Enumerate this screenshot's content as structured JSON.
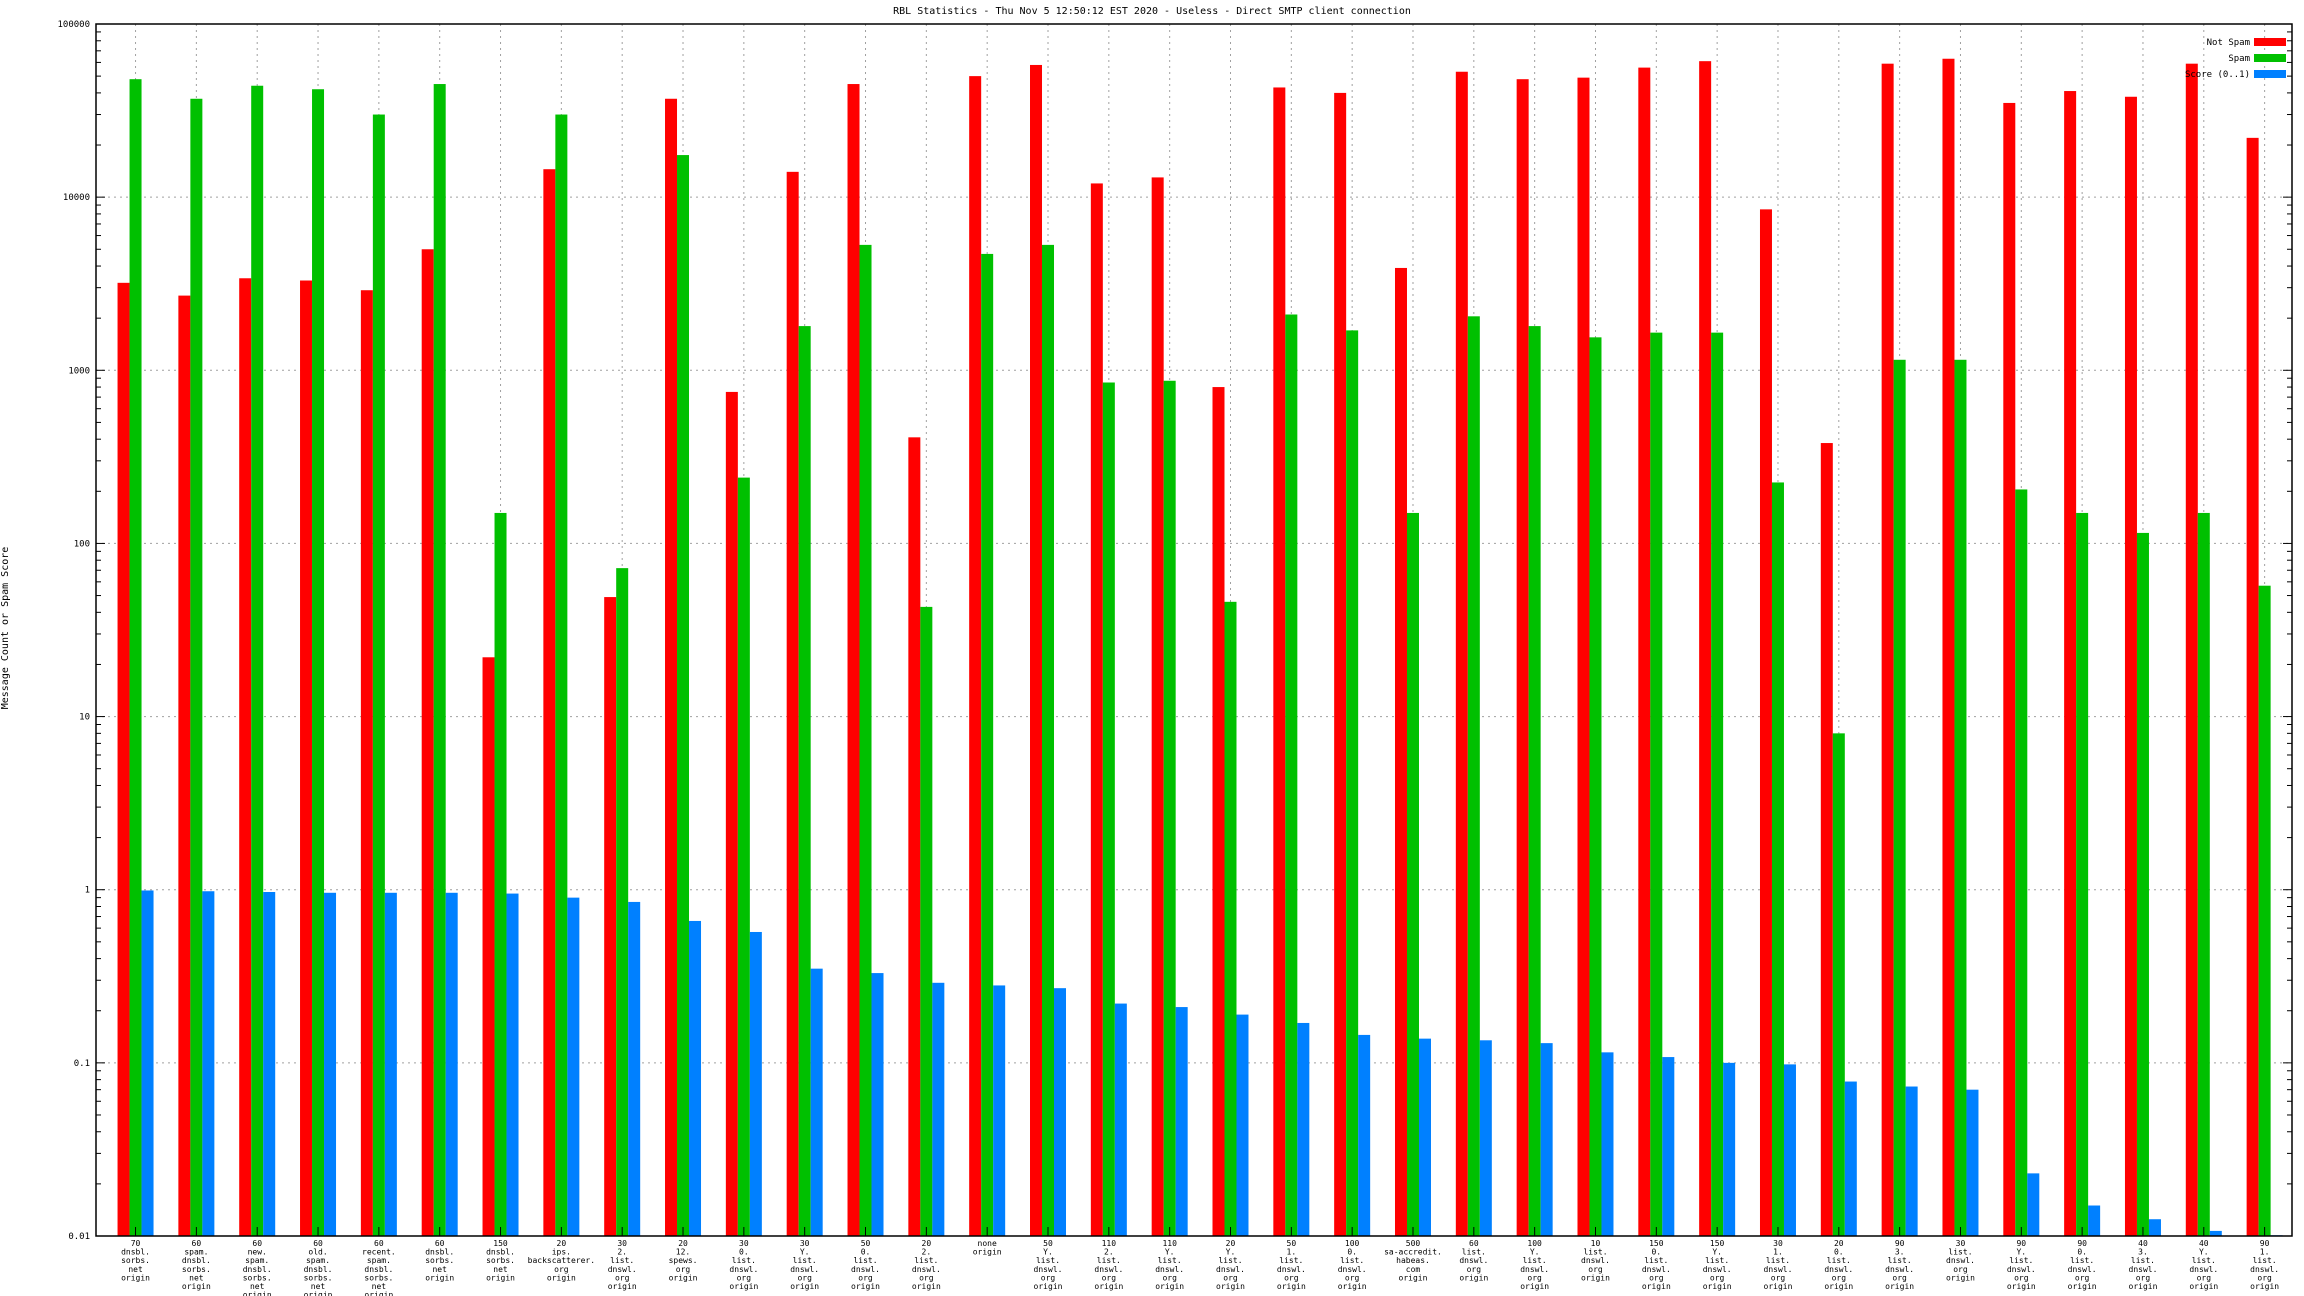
{
  "chart_data": {
    "type": "bar",
    "title": "RBL Statistics - Thu Nov  5 12:50:12 EST 2020 - Useless - Direct SMTP client connection",
    "ylabel": "Message Count or Spam Score",
    "xlabel": "",
    "yscale": "log",
    "ylim": [
      0.01,
      100000
    ],
    "y_ticks": [
      "0.01",
      "0.1",
      "1",
      "10",
      "100",
      "1000",
      "10000",
      "100000"
    ],
    "grid": true,
    "legend_position": "top-right",
    "categories": [
      [
        "70",
        "dnsbl.",
        "sorbs.",
        "net",
        "origin"
      ],
      [
        "60",
        "spam.",
        "dnsbl.",
        "sorbs.",
        "net",
        "origin"
      ],
      [
        "60",
        "new.",
        "spam.",
        "dnsbl.",
        "sorbs.",
        "net",
        "origin"
      ],
      [
        "60",
        "old.",
        "spam.",
        "dnsbl.",
        "sorbs.",
        "net",
        "origin"
      ],
      [
        "60",
        "recent.",
        "spam.",
        "dnsbl.",
        "sorbs.",
        "net",
        "origin"
      ],
      [
        "60",
        "dnsbl.",
        "sorbs.",
        "net",
        "origin"
      ],
      [
        "150",
        "dnsbl.",
        "sorbs.",
        "net",
        "origin"
      ],
      [
        "20",
        "ips.",
        "backscatterer.",
        "org",
        "origin"
      ],
      [
        "30",
        "2.",
        "list.",
        "dnswl.",
        "org",
        "origin"
      ],
      [
        "20",
        "12.",
        "spews.",
        "org",
        "origin"
      ],
      [
        "30",
        "0.",
        "list.",
        "dnswl.",
        "org",
        "origin"
      ],
      [
        "30",
        "Y.",
        "list.",
        "dnswl.",
        "org",
        "origin"
      ],
      [
        "50",
        "0.",
        "list.",
        "dnswl.",
        "org",
        "origin"
      ],
      [
        "20",
        "2.",
        "list.",
        "dnswl.",
        "org",
        "origin"
      ],
      [
        "none",
        "origin"
      ],
      [
        "50",
        "Y.",
        "list.",
        "dnswl.",
        "org",
        "origin"
      ],
      [
        "110",
        "2.",
        "list.",
        "dnswl.",
        "org",
        "origin"
      ],
      [
        "110",
        "Y.",
        "list.",
        "dnswl.",
        "org",
        "origin"
      ],
      [
        "20",
        "Y.",
        "list.",
        "dnswl.",
        "org",
        "origin"
      ],
      [
        "50",
        "1.",
        "list.",
        "dnswl.",
        "org",
        "origin"
      ],
      [
        "100",
        "0.",
        "list.",
        "dnswl.",
        "org",
        "origin"
      ],
      [
        "500",
        "sa-accredit.",
        "habeas.",
        "com",
        "origin"
      ],
      [
        "60",
        "list.",
        "dnswl.",
        "org",
        "origin"
      ],
      [
        "100",
        "Y.",
        "list.",
        "dnswl.",
        "org",
        "origin"
      ],
      [
        "10",
        "list.",
        "dnswl.",
        "org",
        "origin"
      ],
      [
        "150",
        "0.",
        "list.",
        "dnswl.",
        "org",
        "origin"
      ],
      [
        "150",
        "Y.",
        "list.",
        "dnswl.",
        "org",
        "origin"
      ],
      [
        "30",
        "1.",
        "list.",
        "dnswl.",
        "org",
        "origin"
      ],
      [
        "20",
        "0.",
        "list.",
        "dnswl.",
        "org",
        "origin"
      ],
      [
        "90",
        "3.",
        "list.",
        "dnswl.",
        "org",
        "origin"
      ],
      [
        "30",
        "list.",
        "dnswl.",
        "org",
        "origin"
      ],
      [
        "90",
        "Y.",
        "list.",
        "dnswl.",
        "org",
        "origin"
      ],
      [
        "90",
        "0.",
        "list.",
        "dnswl.",
        "org",
        "origin"
      ],
      [
        "40",
        "3.",
        "list.",
        "dnswl.",
        "org",
        "origin"
      ],
      [
        "40",
        "Y.",
        "list.",
        "dnswl.",
        "org",
        "origin"
      ],
      [
        "90",
        "1.",
        "list.",
        "dnswl.",
        "org",
        "origin"
      ]
    ],
    "series": [
      {
        "name": "Not Spam",
        "color": "#ff0000",
        "values": [
          3200,
          2700,
          3400,
          3300,
          2900,
          5000,
          22,
          14500,
          49,
          37000,
          750,
          14000,
          45000,
          410,
          50000,
          58000,
          12000,
          13000,
          800,
          43000,
          40000,
          3900,
          53000,
          48000,
          49000,
          56000,
          61000,
          8500,
          380,
          59000,
          63000,
          35000,
          41000,
          38000,
          59000,
          22000
        ]
      },
      {
        "name": "Spam",
        "color": "#00c000",
        "values": [
          48000,
          37000,
          44000,
          42000,
          30000,
          45000,
          150,
          30000,
          72,
          17500,
          240,
          1800,
          5300,
          43,
          4700,
          5300,
          850,
          870,
          46,
          2100,
          1700,
          150,
          2050,
          1800,
          1550,
          1650,
          1650,
          225,
          8,
          1150,
          1150,
          205,
          150,
          115,
          150,
          57
        ]
      },
      {
        "name": "Score (0..1)",
        "color": "#0080ff",
        "values": [
          0.99,
          0.98,
          0.97,
          0.96,
          0.96,
          0.96,
          0.95,
          0.9,
          0.85,
          0.66,
          0.57,
          0.35,
          0.33,
          0.29,
          0.28,
          0.27,
          0.22,
          0.21,
          0.19,
          0.17,
          0.145,
          0.138,
          0.135,
          0.13,
          0.115,
          0.108,
          0.1,
          0.098,
          0.078,
          0.073,
          0.07,
          0.023,
          0.015,
          0.0125,
          0.0107,
          0.0101
        ]
      }
    ]
  }
}
